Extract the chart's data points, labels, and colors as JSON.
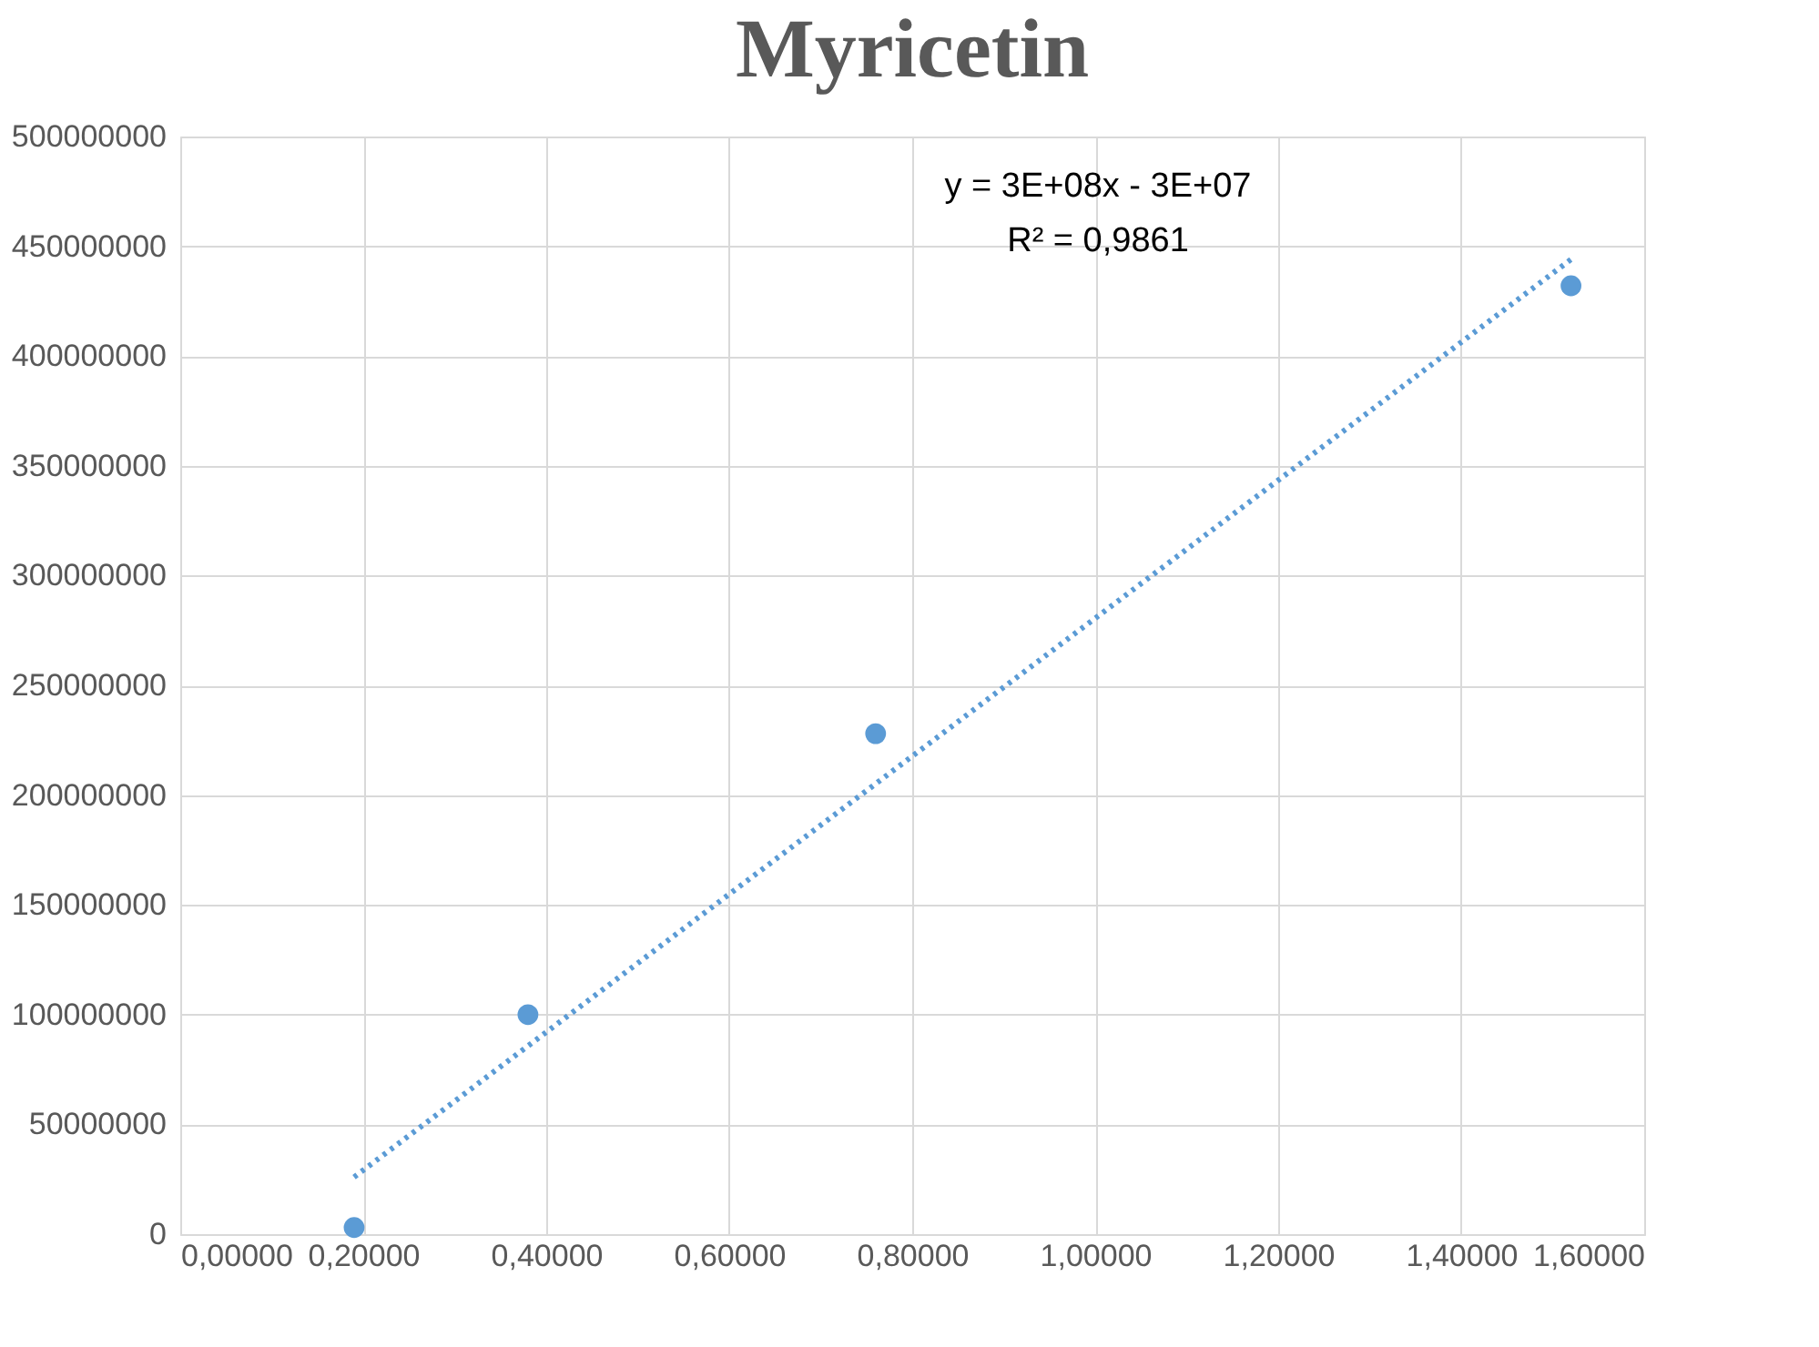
{
  "chart_data": {
    "type": "scatter",
    "title": "Myricetin",
    "series": [
      {
        "color": "#5b9bd5",
        "marker": "circle",
        "x": [
          0.19,
          0.38,
          0.76,
          1.52
        ],
        "values": [
          3000000,
          100000000,
          228000000,
          432000000
        ]
      },
      {
        "type": "line",
        "color": "#5b9bd5",
        "line_style": "dotted",
        "marker": "none",
        "x": [
          0.19,
          1.52
        ],
        "values": [
          26000000,
          444000000
        ]
      }
    ],
    "xlim": [
      0,
      1.6
    ],
    "xticks": [
      {
        "value": 0,
        "label": "0,00000"
      },
      {
        "value": 0.2,
        "label": "0,20000"
      },
      {
        "value": 0.4,
        "label": "0,40000"
      },
      {
        "value": 0.6,
        "label": "0,60000"
      },
      {
        "value": 0.8,
        "label": "0,80000"
      },
      {
        "value": 1.0,
        "label": "1,00000"
      },
      {
        "value": 1.2,
        "label": "1,20000"
      },
      {
        "value": 1.4,
        "label": "1,40000"
      },
      {
        "value": 1.6,
        "label": "1,60000"
      }
    ],
    "ylim": [
      0,
      500000000
    ],
    "yticks": [
      0,
      50000000,
      100000000,
      150000000,
      200000000,
      250000000,
      300000000,
      350000000,
      400000000,
      450000000,
      500000000
    ],
    "grid": true,
    "annotations": [
      "y = 3E+08x - 3E+07",
      "R² = 0,9861"
    ]
  }
}
